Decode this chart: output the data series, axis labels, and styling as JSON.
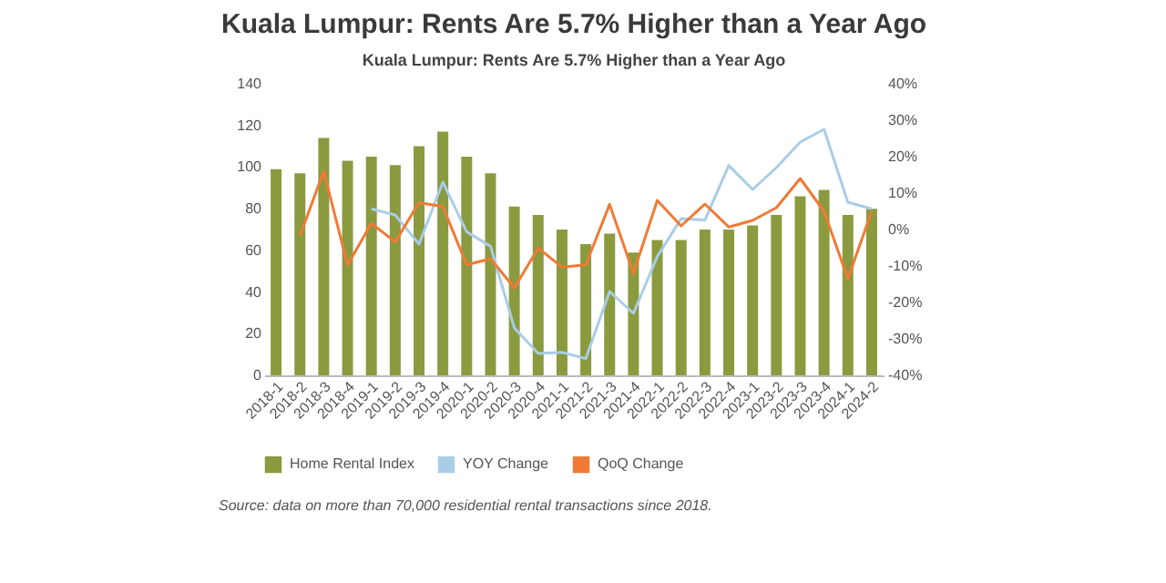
{
  "chart_data": {
    "type": "bar",
    "title": "Kuala Lumpur: Rents Are 5.7% Higher than a Year Ago",
    "subtitle": "Kuala Lumpur: Rents Are 5.7% Higher than a Year Ago",
    "categories": [
      "2018-1",
      "2018-2",
      "2018-3",
      "2018-4",
      "2019-1",
      "2019-2",
      "2019-3",
      "2019-4",
      "2020-1",
      "2020-2",
      "2020-3",
      "2020-4",
      "2021-1",
      "2021-2",
      "2021-3",
      "2021-4",
      "2022-1",
      "2022-2",
      "2022-3",
      "2022-4",
      "2023-1",
      "2023-2",
      "2023-3",
      "2023-4",
      "2024-1",
      "2024-2"
    ],
    "series": [
      {
        "name": "Home Rental Index",
        "color": "#8a9a3e",
        "values": [
          99,
          97,
          114,
          103,
          105,
          101,
          110,
          117,
          105,
          97,
          81,
          77,
          70,
          63,
          68,
          59,
          65,
          65,
          70,
          70,
          72,
          77,
          86,
          89,
          77,
          80
        ]
      },
      {
        "name": "YOY Change",
        "type": "line",
        "axis": "y2",
        "color": "#a9cde6",
        "values": [
          null,
          null,
          null,
          null,
          5.7,
          4,
          -4,
          13,
          -0.6,
          -4.6,
          -27,
          -34,
          -33.7,
          -35.4,
          -17,
          -23,
          -7.4,
          3,
          2.6,
          17.6,
          11,
          17,
          24,
          27.5,
          7.5,
          5.7
        ]
      },
      {
        "name": "QoQ Change",
        "type": "line",
        "axis": "y2",
        "color": "#f07a35",
        "values": [
          null,
          -1.7,
          16,
          -9.7,
          1.7,
          -3.4,
          7.4,
          6.3,
          -9.7,
          -8,
          -16,
          -5.1,
          -10.3,
          -9.7,
          6.9,
          -12,
          8,
          1,
          7,
          0.7,
          2.5,
          6,
          14,
          5,
          -13.5,
          5
        ]
      }
    ],
    "ylim": [
      0,
      140
    ],
    "yticks": [
      0,
      20,
      40,
      60,
      80,
      100,
      120,
      140
    ],
    "y2lim": [
      -40,
      40
    ],
    "y2ticks": [
      {
        "value": -40,
        "label": "-40%"
      },
      {
        "value": -30,
        "label": "-30%"
      },
      {
        "value": -20,
        "label": "-20%"
      },
      {
        "value": -10,
        "label": "-10%"
      },
      {
        "value": 0,
        "label": "0%"
      },
      {
        "value": 10,
        "label": "10%"
      },
      {
        "value": 20,
        "label": "20%"
      },
      {
        "value": 30,
        "label": "30%"
      },
      {
        "value": 40,
        "label": "40%"
      }
    ],
    "grid": false,
    "legend": "bottom",
    "annotations": [
      "Source: data on more than 70,000 residential rental transactions since 2018."
    ]
  }
}
